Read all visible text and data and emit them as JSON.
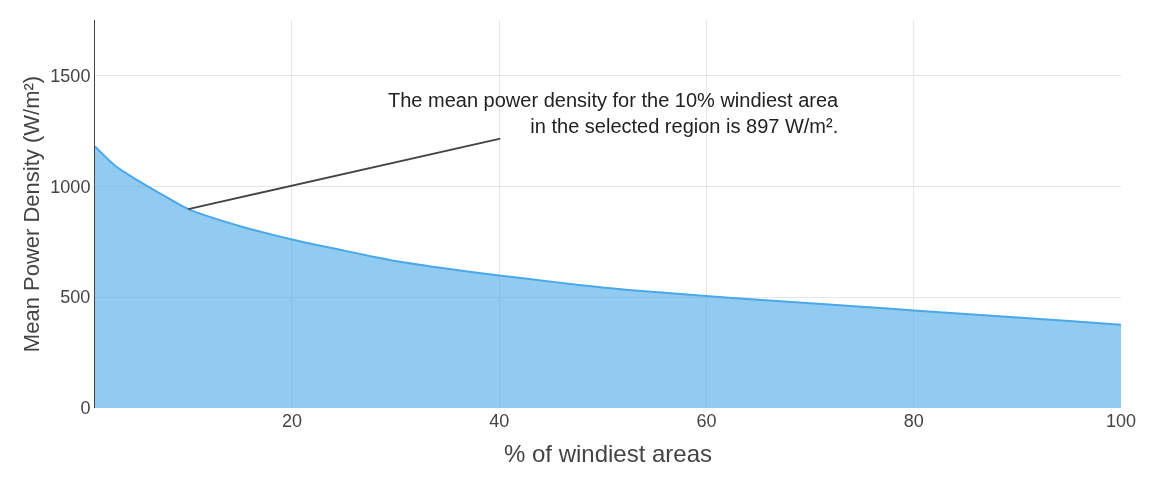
{
  "chart_data": {
    "type": "area",
    "xlabel": "% of windiest areas",
    "ylabel": "Mean Power Density (W/m²)",
    "x": [
      1,
      3,
      5,
      7,
      10,
      15,
      20,
      25,
      30,
      35,
      40,
      45,
      50,
      55,
      60,
      65,
      70,
      75,
      80,
      85,
      90,
      95,
      100
    ],
    "series": [
      {
        "color": "#4aa8e8",
        "values": [
          1180,
          1090,
          1030,
          975,
          897,
          820,
          760,
          710,
          663,
          628,
          598,
          570,
          543,
          523,
          505,
          488,
          473,
          457,
          440,
          424,
          408,
          392,
          375
        ]
      }
    ],
    "xlim": [
      1,
      100
    ],
    "ylim": [
      0,
      1750
    ],
    "xticks": [
      20,
      40,
      60,
      80,
      100
    ],
    "yticks": [
      0,
      500,
      1000,
      1500
    ],
    "grid": true,
    "annotations": [
      {
        "text": "The mean power density for the 10% windiest area\nin the selected region is 897 W/m².",
        "x": 10,
        "y": 897
      }
    ]
  }
}
